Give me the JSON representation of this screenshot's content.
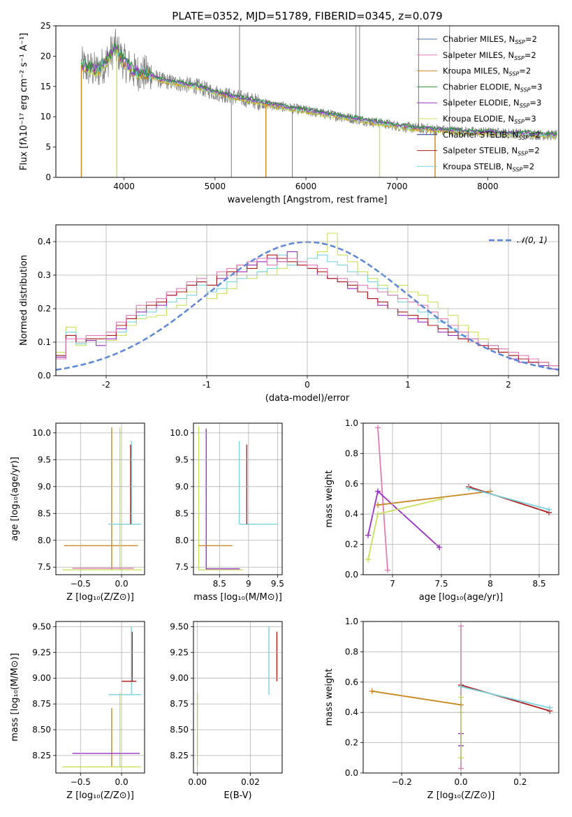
{
  "figure_title": "PLATE=0352, MJD=51789, FIBERID=0345, z=0.079",
  "legend_entries": [
    {
      "key": "chab_miles",
      "label": "Chabrier MILES, N",
      "sub": "SSP",
      "post": "=2",
      "color": "#4e79c4"
    },
    {
      "key": "salp_miles",
      "label": "Salpeter MILES, N",
      "sub": "SSP",
      "post": "=2",
      "color": "#e27ab5"
    },
    {
      "key": "krou_miles",
      "label": "Kroupa MILES, N",
      "sub": "SSP",
      "post": "=2",
      "color": "#c8871f"
    },
    {
      "key": "chab_elodie",
      "label": "Chabrier ELODIE, N",
      "sub": "SSP",
      "post": "=3",
      "color": "#2e8b3a"
    },
    {
      "key": "salp_elodie",
      "label": "Salpeter ELODIE, N",
      "sub": "SSP",
      "post": "=3",
      "color": "#9b2fc4"
    },
    {
      "key": "krou_elodie",
      "label": "Kroupa ELODIE, N",
      "sub": "SSP",
      "post": "=3",
      "color": "#c8e05a"
    },
    {
      "key": "chab_stelib",
      "label": "Chabrier STELIB, N",
      "sub": "SSP",
      "post": "=2",
      "color": "#1d2f8a"
    },
    {
      "key": "salp_stelib",
      "label": "Salpeter STELIB, N",
      "sub": "SSP",
      "post": "=2",
      "color": "#b01a1a"
    },
    {
      "key": "krou_stelib",
      "label": "Kroupa STELIB, N",
      "sub": "SSP",
      "post": "=2",
      "color": "#79d3dd"
    }
  ],
  "chart_data": [
    {
      "id": "spectrum",
      "type": "line",
      "xlabel": "wavelength [Angstrom, rest frame]",
      "ylabel": "Flux [fλ10⁻¹⁷ erg cm⁻² s⁻¹ A⁻¹]",
      "xlim": [
        3250,
        8780
      ],
      "ylim": [
        0,
        25
      ],
      "xticks": [
        4000,
        5000,
        6000,
        7000,
        8000
      ],
      "yticks": [
        0,
        5,
        10,
        15,
        20,
        25
      ],
      "data_color": "#808080",
      "continuum_x": [
        3530,
        3600,
        3700,
        3800,
        3900,
        4000,
        4100,
        4200,
        4300,
        4400,
        4600,
        4800,
        5000,
        5200,
        5400,
        5600,
        5800,
        6000,
        6200,
        6400,
        6600,
        6800,
        7000,
        7200,
        7400,
        7600,
        7800,
        8000,
        8200,
        8400,
        8600,
        8780
      ],
      "continuum_y": [
        18.5,
        18.0,
        17.5,
        19.0,
        21.5,
        19.0,
        17.5,
        17.2,
        16.8,
        16.0,
        15.5,
        15.0,
        14.0,
        13.3,
        12.7,
        12.0,
        11.5,
        11.0,
        10.5,
        10.0,
        9.5,
        9.0,
        8.5,
        8.1,
        7.9,
        7.7,
        7.5,
        7.4,
        7.3,
        7.2,
        7.0,
        6.9
      ],
      "notable_drops": [
        {
          "x": 3530,
          "y": 0,
          "color": "#c8871f"
        },
        {
          "x": 3920,
          "y": 0,
          "color": "#c8e05a"
        },
        {
          "x": 5560,
          "y": 0,
          "color": "#c8871f"
        },
        {
          "x": 6810,
          "y": 0,
          "color": "#c8e05a"
        },
        {
          "x": 7420,
          "y": 0,
          "color": "#c8871f"
        }
      ],
      "spikes": [
        {
          "x": 5180,
          "y": 0
        },
        {
          "x": 5270,
          "y": 25
        },
        {
          "x": 5850,
          "y": 0
        },
        {
          "x": 6550,
          "y": 25
        },
        {
          "x": 6590,
          "y": 25
        },
        {
          "x": 7240,
          "y": 25
        },
        {
          "x": 7580,
          "y": 25
        }
      ]
    },
    {
      "id": "residuals",
      "type": "line",
      "xlabel": "(data-model)/error",
      "ylabel": "Normed distribution",
      "xlim": [
        -2.5,
        2.5
      ],
      "ylim": [
        0,
        0.45
      ],
      "xticks": [
        -2,
        -1,
        0,
        1,
        2
      ],
      "yticks": [
        0.0,
        0.1,
        0.2,
        0.3,
        0.4
      ],
      "legend_label": "𝒩(0, 1)",
      "normal_color": "#5b86d6",
      "hist_bins": 50,
      "hist_series": [
        {
          "key": "krou_elodie",
          "values": [
            0.07,
            0.145,
            0.09,
            0.105,
            0.1,
            0.105,
            0.12,
            0.15,
            0.17,
            0.175,
            0.18,
            0.2,
            0.21,
            0.25,
            0.3,
            0.23,
            0.245,
            0.26,
            0.3,
            0.29,
            0.31,
            0.3,
            0.32,
            0.33,
            0.34,
            0.35,
            0.37,
            0.425,
            0.36,
            0.34,
            0.31,
            0.29,
            0.27,
            0.25,
            0.27,
            0.25,
            0.24,
            0.22,
            0.2,
            0.18,
            0.15,
            0.13,
            0.11,
            0.09,
            0.07,
            0.06,
            0.05,
            0.04,
            0.03,
            0.02
          ]
        },
        {
          "key": "krou_stelib",
          "values": [
            0.06,
            0.13,
            0.095,
            0.11,
            0.1,
            0.12,
            0.13,
            0.16,
            0.18,
            0.19,
            0.2,
            0.22,
            0.23,
            0.24,
            0.27,
            0.25,
            0.26,
            0.28,
            0.29,
            0.3,
            0.31,
            0.32,
            0.36,
            0.33,
            0.34,
            0.35,
            0.36,
            0.34,
            0.33,
            0.31,
            0.3,
            0.28,
            0.26,
            0.24,
            0.22,
            0.2,
            0.19,
            0.17,
            0.16,
            0.14,
            0.12,
            0.11,
            0.1,
            0.09,
            0.08,
            0.06,
            0.05,
            0.04,
            0.03,
            0.03
          ]
        },
        {
          "key": "salp_elodie",
          "values": [
            0.055,
            0.12,
            0.1,
            0.105,
            0.09,
            0.11,
            0.14,
            0.17,
            0.19,
            0.2,
            0.21,
            0.24,
            0.25,
            0.27,
            0.28,
            0.27,
            0.29,
            0.3,
            0.31,
            0.33,
            0.34,
            0.35,
            0.34,
            0.37,
            0.33,
            0.32,
            0.3,
            0.29,
            0.28,
            0.26,
            0.25,
            0.23,
            0.21,
            0.2,
            0.18,
            0.17,
            0.16,
            0.15,
            0.13,
            0.12,
            0.11,
            0.1,
            0.09,
            0.08,
            0.07,
            0.05,
            0.04,
            0.04,
            0.03,
            0.02
          ]
        },
        {
          "key": "salp_stelib",
          "values": [
            0.06,
            0.12,
            0.1,
            0.11,
            0.11,
            0.12,
            0.15,
            0.17,
            0.2,
            0.21,
            0.22,
            0.24,
            0.25,
            0.27,
            0.28,
            0.27,
            0.3,
            0.31,
            0.33,
            0.32,
            0.35,
            0.36,
            0.35,
            0.34,
            0.33,
            0.32,
            0.31,
            0.29,
            0.28,
            0.27,
            0.25,
            0.23,
            0.22,
            0.2,
            0.19,
            0.18,
            0.17,
            0.15,
            0.14,
            0.13,
            0.11,
            0.1,
            0.09,
            0.08,
            0.07,
            0.06,
            0.05,
            0.04,
            0.04,
            0.03
          ]
        },
        {
          "key": "salp_miles",
          "values": [
            0.05,
            0.11,
            0.11,
            0.12,
            0.12,
            0.13,
            0.16,
            0.18,
            0.21,
            0.22,
            0.23,
            0.25,
            0.26,
            0.28,
            0.29,
            0.3,
            0.31,
            0.32,
            0.33,
            0.34,
            0.35,
            0.33,
            0.34,
            0.35,
            0.34,
            0.33,
            0.32,
            0.3,
            0.29,
            0.28,
            0.27,
            0.26,
            0.25,
            0.24,
            0.23,
            0.22,
            0.21,
            0.19,
            0.17,
            0.15,
            0.13,
            0.11,
            0.1,
            0.09,
            0.08,
            0.07,
            0.06,
            0.05,
            0.04,
            0.03
          ]
        }
      ],
      "normal_curve": {
        "mean": 0,
        "sigma": 1
      }
    },
    {
      "id": "age_vs_Z",
      "type": "scatter",
      "xlabel": "Z [log₁₀(Z/Z⊙)]",
      "ylabel": "age  [log₁₀(age/yr)]",
      "xlim": [
        -0.8,
        0.28
      ],
      "ylim": [
        7.36,
        10.18
      ],
      "xticks": [
        -0.5,
        0.0
      ],
      "xticklabels": [
        "−0.5",
        "0.0"
      ],
      "yticks": [
        7.5,
        8.0,
        8.5,
        9.0,
        9.5,
        10.0
      ],
      "segments": [
        {
          "key": "krou_miles",
          "x1": -0.12,
          "y1": 7.45,
          "x2": -0.12,
          "y2": 10.1
        },
        {
          "key": "krou_miles",
          "x1": -0.7,
          "y1": 7.9,
          "x2": 0.2,
          "y2": 7.9
        },
        {
          "key": "krou_elodie",
          "x1": -0.02,
          "y1": 7.45,
          "x2": -0.02,
          "y2": 10.1
        },
        {
          "key": "krou_elodie",
          "x1": -0.72,
          "y1": 7.45,
          "x2": 0.25,
          "y2": 7.45
        },
        {
          "key": "salp_miles",
          "x1": -0.6,
          "y1": 7.48,
          "x2": 0.15,
          "y2": 7.48
        },
        {
          "key": "krou_stelib",
          "x1": -0.16,
          "y1": 8.3,
          "x2": 0.24,
          "y2": 8.3
        },
        {
          "key": "krou_stelib",
          "x1": 0.12,
          "y1": 8.3,
          "x2": 0.12,
          "y2": 9.85
        },
        {
          "key": "salp_stelib",
          "x1": 0.11,
          "y1": 8.3,
          "x2": 0.11,
          "y2": 9.78
        }
      ]
    },
    {
      "id": "age_vs_mass",
      "type": "scatter",
      "xlabel": "mass [log₁₀(M/M⊙)]",
      "ylabel": "",
      "xlim": [
        8.05,
        9.58
      ],
      "ylim": [
        7.36,
        10.18
      ],
      "xticks": [
        8.5,
        9.0,
        9.5
      ],
      "yticks": [
        7.5,
        8.0,
        8.5,
        9.0,
        9.5,
        10.0
      ],
      "segments": [
        {
          "key": "krou_elodie",
          "x1": 8.14,
          "y1": 7.45,
          "x2": 8.14,
          "y2": 10.12
        },
        {
          "key": "salp_elodie",
          "x1": 8.27,
          "y1": 7.45,
          "x2": 8.27,
          "y2": 10.08
        },
        {
          "key": "krou_miles",
          "x1": 8.14,
          "y1": 7.9,
          "x2": 8.72,
          "y2": 7.9
        },
        {
          "key": "krou_elodie",
          "x1": 8.14,
          "y1": 7.45,
          "x2": 8.9,
          "y2": 7.45
        },
        {
          "key": "salp_elodie",
          "x1": 8.27,
          "y1": 7.47,
          "x2": 8.85,
          "y2": 7.47
        },
        {
          "key": "krou_stelib",
          "x1": 8.84,
          "y1": 8.3,
          "x2": 9.5,
          "y2": 8.3
        },
        {
          "key": "krou_stelib",
          "x1": 8.84,
          "y1": 8.3,
          "x2": 8.84,
          "y2": 9.85
        },
        {
          "key": "salp_stelib",
          "x1": 8.97,
          "y1": 8.3,
          "x2": 8.97,
          "y2": 9.78
        }
      ]
    },
    {
      "id": "weight_vs_age",
      "type": "line",
      "xlabel": "age  [log₁₀(age/yr)]",
      "ylabel": "mass weight",
      "xlim": [
        6.7,
        8.7
      ],
      "ylim": [
        0.0,
        1.0
      ],
      "xticks": [
        7.0,
        7.5,
        8.0,
        8.5
      ],
      "yticks": [
        0.0,
        0.2,
        0.4,
        0.6,
        0.8,
        1.0
      ],
      "series": [
        {
          "key": "salp_miles",
          "x": [
            6.85,
            6.95
          ],
          "y": [
            0.97,
            0.03
          ]
        },
        {
          "key": "salp_elodie",
          "x": [
            6.75,
            6.85,
            7.48
          ],
          "y": [
            0.26,
            0.55,
            0.18
          ]
        },
        {
          "key": "krou_elodie",
          "x": [
            6.75,
            6.85,
            7.5
          ],
          "y": [
            0.1,
            0.4,
            0.5
          ]
        },
        {
          "key": "krou_miles",
          "x": [
            6.85,
            8.0
          ],
          "y": [
            0.46,
            0.55
          ]
        },
        {
          "key": "salp_stelib",
          "x": [
            7.78,
            8.6
          ],
          "y": [
            0.58,
            0.41
          ]
        },
        {
          "key": "krou_stelib",
          "x": [
            7.78,
            8.6
          ],
          "y": [
            0.57,
            0.43
          ]
        }
      ]
    },
    {
      "id": "mass_vs_Z",
      "type": "scatter",
      "xlabel": "Z [log₁₀(Z/Z⊙)]",
      "ylabel": "mass [log₁₀(M/M⊙)]",
      "xlim": [
        -0.8,
        0.28
      ],
      "ylim": [
        8.08,
        9.55
      ],
      "xticks": [
        -0.5,
        0.0
      ],
      "xticklabels": [
        "−0.5",
        "0.0"
      ],
      "yticks": [
        8.25,
        8.5,
        8.75,
        9.0,
        9.25,
        9.5
      ],
      "segments": [
        {
          "key": "krou_miles",
          "x1": -0.12,
          "y1": 8.14,
          "x2": -0.12,
          "y2": 8.71
        },
        {
          "key": "krou_elodie",
          "x1": -0.02,
          "y1": 8.14,
          "x2": -0.02,
          "y2": 8.86
        },
        {
          "key": "krou_elodie",
          "x1": -0.72,
          "y1": 8.14,
          "x2": 0.24,
          "y2": 8.14
        },
        {
          "key": "salp_elodie",
          "x1": -0.6,
          "y1": 8.27,
          "x2": 0.22,
          "y2": 8.27
        },
        {
          "key": "krou_stelib",
          "x1": -0.16,
          "y1": 8.84,
          "x2": 0.24,
          "y2": 8.84
        },
        {
          "key": "krou_stelib",
          "x1": 0.12,
          "y1": 8.84,
          "x2": 0.12,
          "y2": 9.5
        },
        {
          "key": "salp_stelib",
          "x1": 0.0,
          "y1": 8.97,
          "x2": 0.18,
          "y2": 8.97
        },
        {
          "key": "salp_stelib",
          "x1": 0.13,
          "y1": 8.97,
          "x2": 0.13,
          "y2": 9.45
        }
      ]
    },
    {
      "id": "mass_vs_ebv",
      "type": "scatter",
      "xlabel": "E(B-V)",
      "ylabel": "",
      "xlim": [
        -0.0015,
        0.032
      ],
      "ylim": [
        8.08,
        9.55
      ],
      "xticks": [
        0.0,
        0.02
      ],
      "xticklabels": [
        "0.00",
        "0.02"
      ],
      "yticks": [
        8.25,
        8.5,
        8.75,
        9.0,
        9.25,
        9.5
      ],
      "segments": [
        {
          "key": "krou_elodie",
          "x1": 0.0,
          "y1": 8.14,
          "x2": 0.0,
          "y2": 8.86
        },
        {
          "key": "krou_stelib",
          "x1": 0.027,
          "y1": 8.84,
          "x2": 0.027,
          "y2": 9.5
        },
        {
          "key": "salp_stelib",
          "x1": 0.03,
          "y1": 8.97,
          "x2": 0.03,
          "y2": 9.45
        }
      ]
    },
    {
      "id": "weight_vs_Z",
      "type": "line",
      "xlabel": "Z [log₁₀(Z/Z⊙)]",
      "ylabel": "mass weight",
      "xlim": [
        -0.33,
        0.33
      ],
      "ylim": [
        0.0,
        1.0
      ],
      "xticks": [
        -0.2,
        0.0,
        0.2
      ],
      "xticklabels": [
        "−0.2",
        "0.0",
        "0.2"
      ],
      "yticks": [
        0.0,
        0.2,
        0.4,
        0.6,
        0.8,
        1.0
      ],
      "series": [
        {
          "key": "salp_miles",
          "x": [
            0.0,
            0.0
          ],
          "y": [
            0.97,
            0.03
          ]
        },
        {
          "key": "salp_elodie",
          "x": [
            0.0,
            0.0
          ],
          "y": [
            0.26,
            0.18
          ]
        },
        {
          "key": "krou_elodie",
          "x": [
            0.0,
            0.0,
            0.0
          ],
          "y": [
            0.5,
            0.4,
            0.1
          ]
        },
        {
          "key": "krou_miles",
          "x": [
            -0.3,
            0.0
          ],
          "y": [
            0.54,
            0.45
          ]
        },
        {
          "key": "salp_stelib",
          "x": [
            0.0,
            0.3
          ],
          "y": [
            0.58,
            0.41
          ]
        },
        {
          "key": "krou_stelib",
          "x": [
            0.0,
            0.3
          ],
          "y": [
            0.57,
            0.43
          ]
        }
      ]
    }
  ]
}
